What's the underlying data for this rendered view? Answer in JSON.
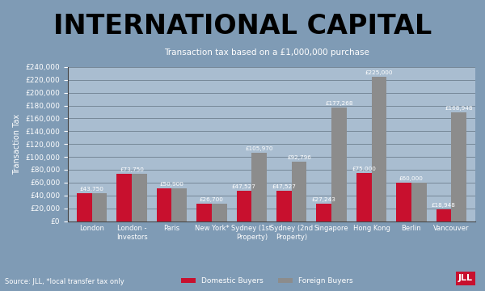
{
  "chart_data": {
    "type": "bar",
    "title": "INTERNATIONAL CAPITAL",
    "subtitle": "Transaction tax based on a £1,000,000 purchase",
    "y_label": "Transaction Tax",
    "source": "Source: JLL, *local transfer tax only",
    "logo": "JLL",
    "categories": [
      "London",
      "London - Investors",
      "Paris",
      "New York*",
      "Sydney (1st Property)",
      "Sydney (2nd Property)",
      "Singapore",
      "Hong Kong",
      "Berlin",
      "Vancouver"
    ],
    "series": [
      {
        "name": "Domestic Buyers",
        "color": "#c8102e",
        "values": [
          43750,
          73750,
          50900,
          26700,
          47527,
          47527,
          27243,
          75000,
          60000,
          18948
        ],
        "value_labels": [
          "£43,750",
          "£73,750",
          "£50,900",
          "£26,700",
          "£47,527",
          "£47,527",
          "£27,243",
          "£75,000",
          "£60,000",
          "£18,948"
        ]
      },
      {
        "name": "Foreign Buyers",
        "color": "#8c8c8c",
        "values": [
          43750,
          73750,
          50900,
          26700,
          105970,
          92796,
          177268,
          225000,
          60000,
          168948
        ],
        "value_labels": [
          null,
          null,
          null,
          null,
          "£105,970",
          "£92,796",
          "£177,268",
          "£225,000",
          null,
          "£168,948"
        ]
      }
    ],
    "ylim": [
      0,
      240000
    ],
    "yticks": [
      {
        "value": 0,
        "label": "£0"
      },
      {
        "value": 20000,
        "label": "£20,000"
      },
      {
        "value": 40000,
        "label": "£40,000"
      },
      {
        "value": 60000,
        "label": "£60,000"
      },
      {
        "value": 80000,
        "label": "£80,000"
      },
      {
        "value": 100000,
        "label": "£100,000"
      },
      {
        "value": 120000,
        "label": "£120,000"
      },
      {
        "value": 140000,
        "label": "£140,000"
      },
      {
        "value": 160000,
        "label": "£160,000"
      },
      {
        "value": 180000,
        "label": "£180,000"
      },
      {
        "value": 200000,
        "label": "£200,000"
      },
      {
        "value": 220000,
        "label": "£220,000"
      },
      {
        "value": 240000,
        "label": "£240,000"
      }
    ],
    "grid": true,
    "data_labels": true,
    "legend": "lower center"
  }
}
